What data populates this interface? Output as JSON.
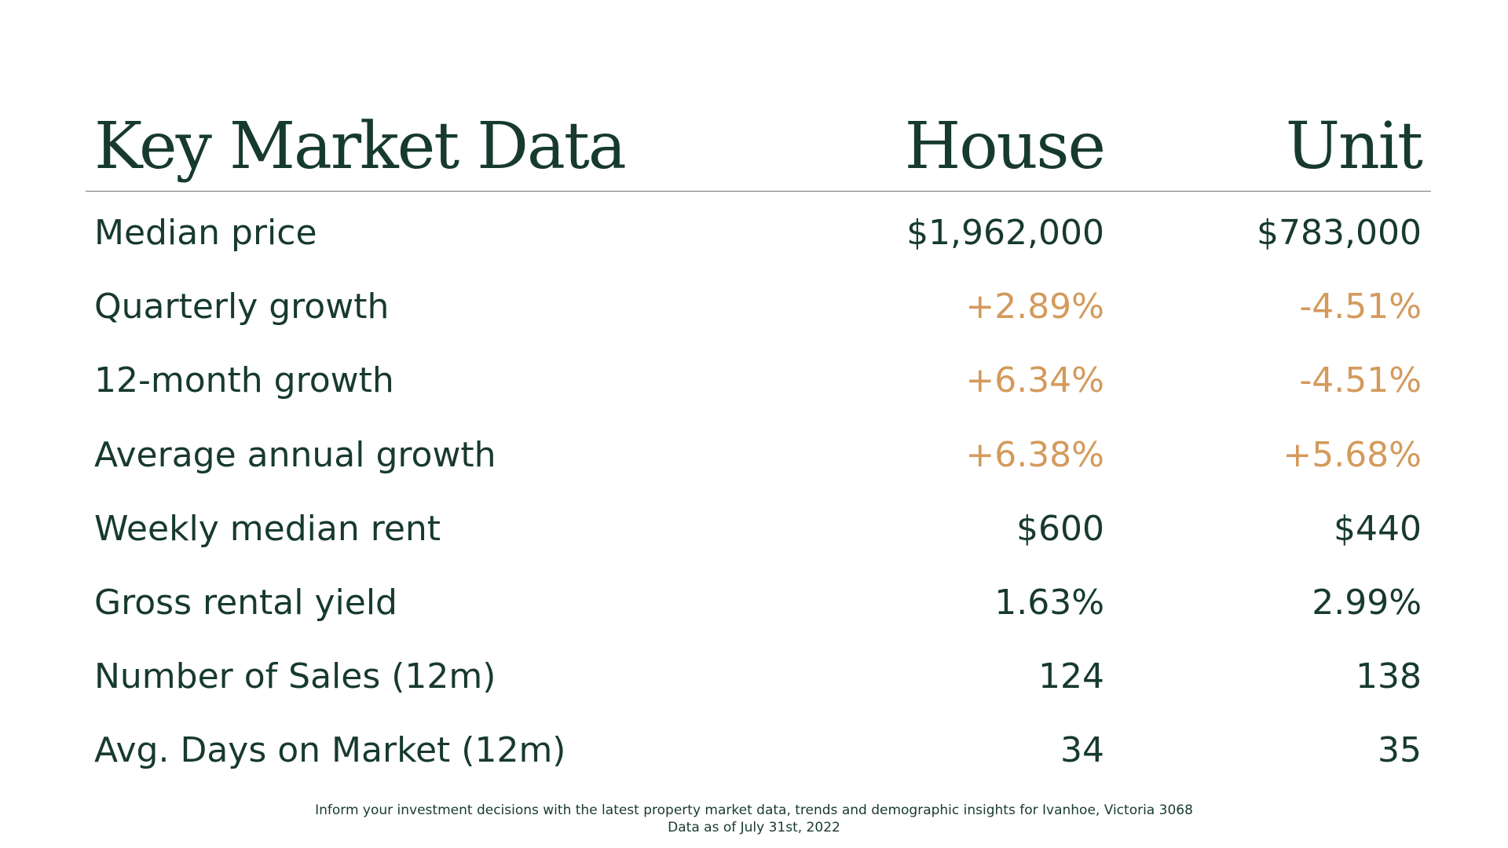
{
  "header": {
    "title": "Key Market Data",
    "col_house": "House",
    "col_unit": "Unit"
  },
  "rows": [
    {
      "label": "Median price",
      "house": "$1,962,000",
      "unit": "$783,000",
      "accent": false
    },
    {
      "label": "Quarterly growth",
      "house": "+2.89%",
      "unit": "-4.51%",
      "accent": true
    },
    {
      "label": "12-month growth",
      "house": "+6.34%",
      "unit": "-4.51%",
      "accent": true
    },
    {
      "label": "Average annual growth",
      "house": "+6.38%",
      "unit": "+5.68%",
      "accent": true
    },
    {
      "label": "Weekly median rent",
      "house": "$600",
      "unit": "$440",
      "accent": false
    },
    {
      "label": "Gross rental yield",
      "house": "1.63%",
      "unit": "2.99%",
      "accent": false
    },
    {
      "label": "Number of Sales (12m)",
      "house": "124",
      "unit": "138",
      "accent": false
    },
    {
      "label": "Avg. Days on Market (12m)",
      "house": "34",
      "unit": "35",
      "accent": false
    }
  ],
  "footer": {
    "line1": "Inform your investment decisions with the latest property market data, trends and demographic insights for Ivanhoe, Victoria 3068",
    "line2": "Data as of July 31st, 2022"
  },
  "colors": {
    "text": "#173a2e",
    "accent": "#d49a5c",
    "divider": "#6e7c77",
    "background": "#ffffff"
  }
}
